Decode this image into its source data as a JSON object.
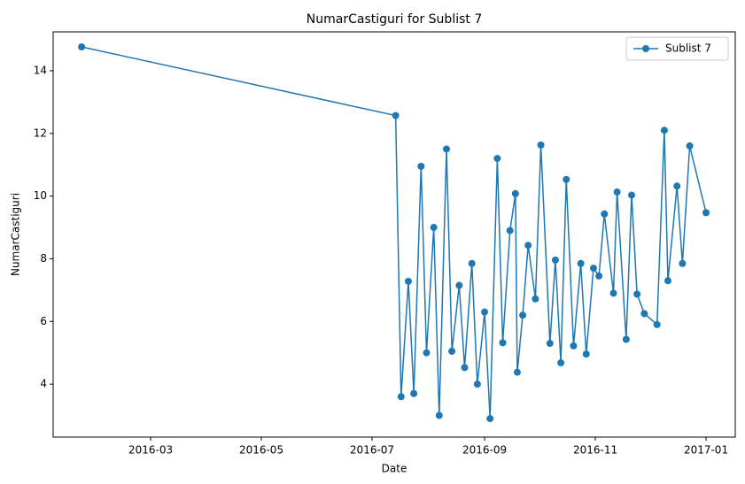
{
  "chart_data": {
    "type": "line",
    "title": "NumarCastiguri for Sublist 7",
    "xlabel": "Date",
    "ylabel": "NumarCastiguri",
    "x": [
      16823,
      16996,
      16999,
      17003,
      17006,
      17010,
      17013,
      17017,
      17020,
      17024,
      17027,
      17031,
      17034,
      17038,
      17041,
      17045,
      17048,
      17052,
      17055,
      17059,
      17062,
      17063,
      17066,
      17069,
      17073,
      17076,
      17081,
      17084,
      17087,
      17090,
      17094,
      17098,
      17101,
      17105,
      17108,
      17111,
      17116,
      17118,
      17123,
      17126,
      17129,
      17133,
      17140,
      17144,
      17146,
      17151,
      17154,
      17158,
      17167
    ],
    "series": [
      {
        "name": "Sublist 7",
        "color": "#1f77b4",
        "values": [
          14.76,
          12.57,
          3.6,
          7.28,
          3.7,
          10.95,
          5.0,
          9.0,
          3.0,
          11.5,
          5.05,
          7.15,
          4.53,
          7.85,
          4.0,
          6.3,
          2.9,
          11.2,
          5.32,
          8.9,
          10.08,
          4.38,
          6.2,
          8.43,
          6.72,
          11.63,
          5.3,
          7.96,
          4.68,
          10.53,
          5.22,
          7.85,
          4.96,
          7.7,
          7.45,
          9.43,
          6.9,
          10.13,
          5.43,
          10.03,
          6.87,
          6.25,
          5.9,
          12.1,
          7.3,
          10.32,
          7.85,
          11.6,
          9.47
        ]
      }
    ],
    "xlim": [
      16807.3,
      17183.1
    ],
    "xticks": [
      {
        "value": 16861,
        "label": "2016-03"
      },
      {
        "value": 16922,
        "label": "2016-05"
      },
      {
        "value": 16983,
        "label": "2016-07"
      },
      {
        "value": 17045,
        "label": "2016-09"
      },
      {
        "value": 17106,
        "label": "2016-11"
      },
      {
        "value": 17167,
        "label": "2017-01"
      }
    ],
    "ylim": [
      2.31,
      15.24
    ],
    "yticks": [
      4,
      6,
      8,
      10,
      12,
      14
    ],
    "grid": false,
    "legend": "upper-right"
  }
}
